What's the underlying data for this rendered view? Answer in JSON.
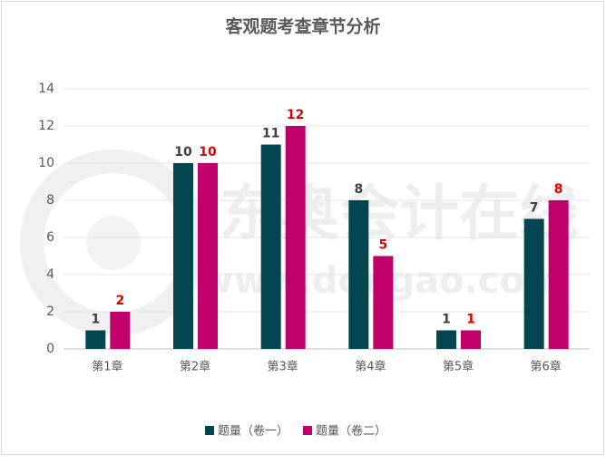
{
  "chart_data": {
    "type": "bar",
    "title": "客观题考查章节分析",
    "watermark": [
      "东奥会计在线",
      "www.dongao.com"
    ],
    "categories": [
      "第1章",
      "第2章",
      "第3章",
      "第4章",
      "第5章",
      "第6章"
    ],
    "series": [
      {
        "name": "题量（卷一）",
        "color": "#034650",
        "label_color": "#404040",
        "values": [
          1,
          10,
          11,
          8,
          1,
          7
        ]
      },
      {
        "name": "题量（卷二）",
        "color": "#c0006b",
        "label_color": "#e00000",
        "values": [
          2,
          10,
          12,
          5,
          1,
          8
        ]
      }
    ],
    "ylim": [
      0,
      14
    ],
    "yticks": [
      0,
      2,
      4,
      6,
      8,
      10,
      12,
      14
    ],
    "grid": true,
    "legend": "bottom"
  }
}
